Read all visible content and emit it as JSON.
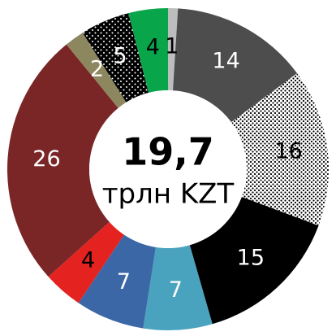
{
  "chart_data": {
    "type": "donut",
    "center_value": "19,7",
    "center_label": "трлн KZT",
    "values": [
      1,
      14,
      16,
      15,
      7,
      7,
      4,
      26,
      2,
      5,
      4
    ],
    "colors": [
      "#bdbdbd",
      "#4d4d4d",
      "#ffffff",
      "#000000",
      "#4aa3be",
      "#3c67a6",
      "#e42320",
      "#7a2626",
      "#8d8760",
      "#000000",
      "#09a54a"
    ],
    "patterns": [
      null,
      null,
      "dark-dots",
      null,
      null,
      null,
      null,
      null,
      null,
      "light-dots",
      null
    ],
    "label_colors": [
      "#000000",
      "#ffffff",
      "#000000",
      "#ffffff",
      "#ffffff",
      "#ffffff",
      "#000000",
      "#ffffff",
      "#ffffff",
      "#ffffff",
      "#000000"
    ]
  }
}
